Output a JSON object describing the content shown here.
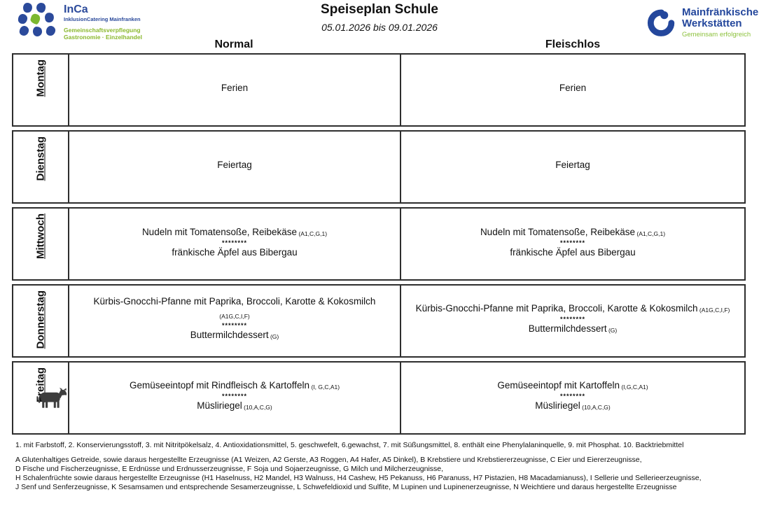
{
  "page": {
    "title": "Speiseplan Schule",
    "date_range": "05.01.2026 bis 09.01.2026"
  },
  "logos": {
    "inca": {
      "name": "InCa",
      "subtitle": "InklusionCatering Mainfranken",
      "line2": "Gemeinschaftsverpflegung",
      "line3": "Gastronomie · Einzelhandel",
      "blue": "#2b4a9b",
      "green": "#8ab82e"
    },
    "mfw": {
      "name_line1": "Mainfränkische",
      "name_line2": "Werkstätten",
      "tagline": "Gemeinsam erfolgreich",
      "blue": "#24479c",
      "green": "#8cc13c"
    }
  },
  "columns": {
    "normal": "Normal",
    "fleischlos": "Fleischlos"
  },
  "separator": "********",
  "days": [
    {
      "name": "Montag",
      "icon": "",
      "normal": [
        {
          "text": "Ferien",
          "allergens": ""
        }
      ],
      "fleischlos": [
        {
          "text": "Ferien",
          "allergens": ""
        }
      ]
    },
    {
      "name": "Dienstag",
      "icon": "",
      "normal": [
        {
          "text": "Feiertag",
          "allergens": ""
        }
      ],
      "fleischlos": [
        {
          "text": "Feiertag",
          "allergens": ""
        }
      ]
    },
    {
      "name": "Mittwoch",
      "icon": "",
      "normal": [
        {
          "text": "Nudeln mit Tomatensoße, Reibekäse",
          "allergens": "(A1,C,G,1)"
        },
        {
          "sep": true
        },
        {
          "text": "fränkische Äpfel aus Bibergau",
          "allergens": ""
        }
      ],
      "fleischlos": [
        {
          "text": "Nudeln mit Tomatensoße, Reibekäse",
          "allergens": "(A1,C,G,1)"
        },
        {
          "sep": true
        },
        {
          "text": "fränkische Äpfel aus Bibergau",
          "allergens": ""
        }
      ]
    },
    {
      "name": "Donnerstag",
      "icon": "",
      "normal": [
        {
          "text": "Kürbis-Gnocchi-Pfanne mit Paprika, Broccoli, Karotte & Kokosmilch",
          "allergens": "(A1G,C,I,F)"
        },
        {
          "sep": true
        },
        {
          "text": "Buttermilchdessert",
          "allergens": "(G)"
        }
      ],
      "fleischlos": [
        {
          "text": "Kürbis-Gnocchi-Pfanne mit Paprika, Broccoli, Karotte & Kokosmilch",
          "allergens": "(A1G,C,I,F)"
        },
        {
          "sep": true
        },
        {
          "text": "Buttermilchdessert",
          "allergens": "(G)"
        }
      ]
    },
    {
      "name": "Freitag",
      "icon": "cow-icon",
      "normal": [
        {
          "text": "Gemüseeintopf mit Rindfleisch & Kartoffeln",
          "allergens": "(I, G,C,A1)"
        },
        {
          "sep": true
        },
        {
          "text": "Müsliriegel",
          "allergens": "(10,A,C,G)"
        }
      ],
      "fleischlos": [
        {
          "text": "Gemüseeintopf mit Kartoffeln",
          "allergens": "(I,G,C,A1)"
        },
        {
          "sep": true
        },
        {
          "text": "Müsliriegel",
          "allergens": "(10,A,C,G)"
        }
      ]
    }
  ],
  "footnotes": [
    "1. mit Farbstoff, 2. Konservierungsstoff, 3. mit Nitritpökelsalz, 4. Antioxidationsmittel, 5. geschwefelt, 6.gewachst, 7. mit Süßungsmittel, 8. enthält eine Phenylalaninquelle, 9. mit Phosphat. 10. Backtriebmittel",
    "A Glutenhaltiges Getreide, sowie daraus hergestellte Erzeugnisse (A1 Weizen, A2 Gerste, A3 Roggen, A4 Hafer, A5 Dinkel), B Krebstiere und Krebstiererzeugnisse, C Eier und Eiererzeugnisse,",
    "D Fische und Fischerzeugnisse, E Erdnüsse und Erdnusserzeugnisse, F Soja und Sojaerzeugnisse, G Milch und Milcherzeugnisse,",
    "H Schalenfrüchte sowie daraus hergestellte Erzeugnisse (H1 Haselnuss, H2 Mandel, H3 Walnuss, H4 Cashew, H5 Pekanuss, H6 Paranuss, H7 Pistazien, H8 Macadamianuss), I Sellerie und Sellerieerzeugnisse,",
    "J Senf und Senferzeugnisse, K Sesamsamen und entsprechende Sesamerzeugnisse, L Schwefeldioxid und Sulfite, M Lupinen und Lupinenerzeugnisse, N Weichtiere und daraus hergestellte Erzeugnisse"
  ]
}
